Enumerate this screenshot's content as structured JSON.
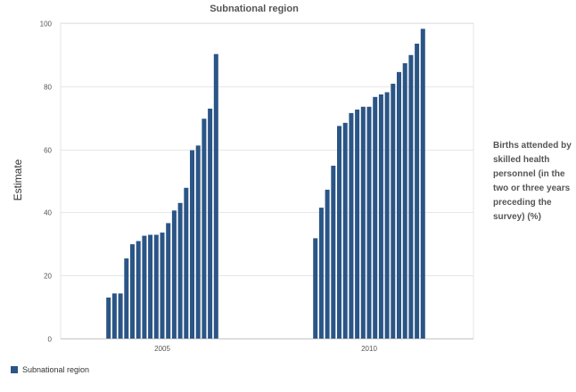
{
  "chart_data": {
    "type": "bar",
    "title": "Subnational region",
    "xlabel": "",
    "ylabel": "Estimate",
    "ylim": [
      0,
      100
    ],
    "yticks": [
      0,
      20,
      40,
      60,
      80,
      100
    ],
    "grid": true,
    "legend_position": "bottom-left",
    "categories": [
      "2005",
      "2010"
    ],
    "series": [
      {
        "name": "Subnational region",
        "color": "#2b5586",
        "groups": [
          {
            "category": "2005",
            "values": [
              13.0,
              14.3,
              14.3,
              25.4,
              29.9,
              30.9,
              32.6,
              32.9,
              32.9,
              33.6,
              36.6,
              40.6,
              43.0,
              47.8,
              59.7,
              61.2,
              69.7,
              72.9,
              90.2
            ]
          },
          {
            "category": "2010",
            "values": [
              31.8,
              41.5,
              47.2,
              54.8,
              67.4,
              68.4,
              71.5,
              72.6,
              73.5,
              73.5,
              76.6,
              77.4,
              78.1,
              80.8,
              84.5,
              87.3,
              89.9,
              93.5,
              98.2
            ]
          }
        ]
      }
    ],
    "side_note": "Births attended by skilled health personnel (in the two or three years preceding the survey) (%)"
  }
}
